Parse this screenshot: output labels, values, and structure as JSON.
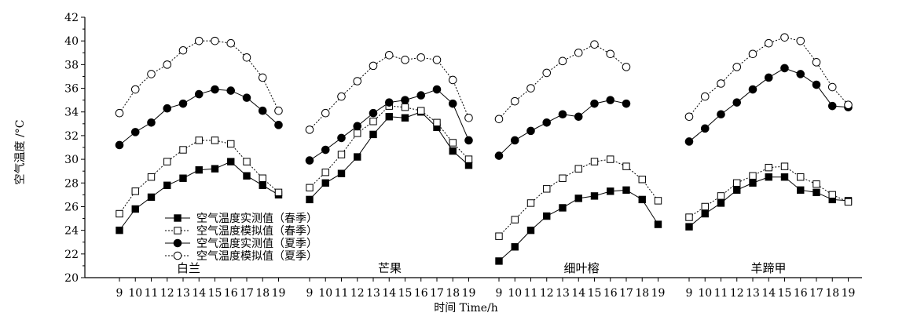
{
  "chart_data": {
    "type": "line",
    "title": "",
    "xlabel": "时间 Time/h",
    "ylabel": "空气温度 /°C",
    "ylim": [
      20,
      42
    ],
    "yticks": [
      20,
      22,
      24,
      26,
      28,
      30,
      32,
      34,
      36,
      38,
      40,
      42
    ],
    "grid": false,
    "legend_position": "bottom-left",
    "legend": [
      "空气温度实测值（春季）",
      "空气温度模拟值（春季）",
      "空气温度实测值（夏季）",
      "空气温度模拟值（夏季）"
    ],
    "panels": [
      {
        "name": "白兰",
        "x": [
          9,
          10,
          11,
          12,
          13,
          14,
          15,
          16,
          17,
          18,
          19
        ],
        "series": [
          {
            "marker": "filled-square",
            "dash": false,
            "values": [
              24.0,
              25.8,
              26.8,
              27.8,
              28.4,
              29.1,
              29.2,
              29.8,
              28.6,
              27.8,
              27.0
            ]
          },
          {
            "marker": "open-square",
            "dash": true,
            "values": [
              25.4,
              27.3,
              28.5,
              29.8,
              30.8,
              31.6,
              31.6,
              31.3,
              29.8,
              28.4,
              27.2
            ]
          },
          {
            "marker": "filled-circle",
            "dash": false,
            "values": [
              31.2,
              32.3,
              33.1,
              34.3,
              34.7,
              35.5,
              35.9,
              35.8,
              35.2,
              34.1,
              32.9
            ]
          },
          {
            "marker": "open-circle",
            "dash": true,
            "values": [
              33.9,
              35.9,
              37.2,
              38.0,
              39.2,
              40.0,
              40.0,
              39.8,
              38.6,
              36.9,
              34.1
            ]
          }
        ]
      },
      {
        "name": "芒果",
        "x": [
          9,
          10,
          11,
          12,
          13,
          14,
          15,
          16,
          17,
          18,
          19
        ],
        "series": [
          {
            "marker": "filled-square",
            "dash": false,
            "values": [
              26.6,
              28.0,
              28.8,
              30.2,
              32.1,
              33.6,
              33.5,
              34.0,
              32.7,
              30.7,
              29.5
            ]
          },
          {
            "marker": "open-square",
            "dash": true,
            "values": [
              27.6,
              28.9,
              30.4,
              32.2,
              33.2,
              34.5,
              34.4,
              34.1,
              33.1,
              31.4,
              30.0
            ]
          },
          {
            "marker": "filled-circle",
            "dash": false,
            "values": [
              29.9,
              30.8,
              31.8,
              32.8,
              33.9,
              34.8,
              35.0,
              35.4,
              35.9,
              34.7,
              31.6
            ]
          },
          {
            "marker": "open-circle",
            "dash": true,
            "values": [
              32.5,
              33.9,
              35.3,
              36.6,
              37.9,
              38.8,
              38.4,
              38.6,
              38.4,
              36.7,
              33.5
            ]
          }
        ]
      },
      {
        "name": "细叶榕",
        "x": [
          9,
          10,
          11,
          12,
          13,
          14,
          15,
          16,
          17,
          18,
          19
        ],
        "series": [
          {
            "marker": "filled-square",
            "dash": false,
            "values": [
              21.4,
              22.6,
              24.0,
              25.2,
              25.9,
              26.7,
              26.9,
              27.3,
              27.4,
              26.6,
              24.5
            ]
          },
          {
            "marker": "open-square",
            "dash": true,
            "values": [
              23.5,
              24.9,
              26.3,
              27.5,
              28.4,
              29.2,
              29.8,
              30.0,
              29.4,
              28.3,
              26.5
            ]
          },
          {
            "marker": "filled-circle",
            "dash": false,
            "values": [
              30.3,
              31.6,
              32.4,
              33.1,
              33.8,
              33.6,
              34.7,
              35.0,
              34.7,
              null,
              null
            ]
          },
          {
            "marker": "open-circle",
            "dash": true,
            "values": [
              33.4,
              34.9,
              36.0,
              37.3,
              38.3,
              39.0,
              39.7,
              38.9,
              37.8,
              null,
              null
            ]
          }
        ]
      },
      {
        "name": "羊蹄甲",
        "x": [
          9,
          10,
          11,
          12,
          13,
          14,
          15,
          16,
          17,
          18,
          19
        ],
        "series": [
          {
            "marker": "filled-square",
            "dash": false,
            "values": [
              24.3,
              25.4,
              26.3,
              27.4,
              28.0,
              28.5,
              28.5,
              27.4,
              27.2,
              26.6,
              26.5
            ]
          },
          {
            "marker": "open-square",
            "dash": true,
            "values": [
              25.1,
              26.0,
              26.9,
              28.0,
              28.6,
              29.3,
              29.4,
              28.5,
              27.9,
              27.0,
              26.4
            ]
          },
          {
            "marker": "filled-circle",
            "dash": false,
            "values": [
              31.5,
              32.6,
              33.8,
              34.8,
              35.9,
              36.9,
              37.7,
              37.2,
              36.3,
              34.5,
              34.4
            ]
          },
          {
            "marker": "open-circle",
            "dash": true,
            "values": [
              33.6,
              35.3,
              36.4,
              37.8,
              38.9,
              39.8,
              40.3,
              40.0,
              38.2,
              36.1,
              34.6
            ]
          }
        ]
      }
    ]
  }
}
